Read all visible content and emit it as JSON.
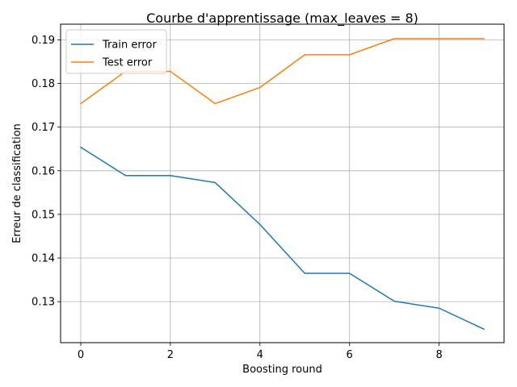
{
  "chart_data": {
    "type": "line",
    "title": "Courbe d'apprentissage (max_leaves = 8)",
    "xlabel": "Boosting round",
    "ylabel": "Erreur de classification",
    "x": [
      0,
      1,
      2,
      3,
      4,
      5,
      6,
      7,
      8,
      9
    ],
    "xlim": [
      -0.45,
      9.45
    ],
    "ylim": [
      0.1206,
      0.1936
    ],
    "xticks": [
      0,
      2,
      4,
      6,
      8
    ],
    "xtick_labels": [
      "0",
      "2",
      "4",
      "6",
      "8"
    ],
    "yticks": [
      0.13,
      0.14,
      0.15,
      0.16,
      0.17,
      0.18,
      0.19
    ],
    "ytick_labels": [
      "0.13",
      "0.14",
      "0.15",
      "0.16",
      "0.17",
      "0.18",
      "0.19"
    ],
    "grid": true,
    "legend_position": "top-left",
    "series": [
      {
        "name": "Train error",
        "color": "#1f77b4",
        "values": [
          0.1654,
          0.1589,
          0.1589,
          0.1573,
          0.1477,
          0.1365,
          0.1365,
          0.1301,
          0.1285,
          0.1237
        ]
      },
      {
        "name": "Test error",
        "color": "#ff7f0e",
        "values": [
          0.1754,
          0.1828,
          0.1828,
          0.1754,
          0.1791,
          0.1866,
          0.1866,
          0.1903,
          0.1903,
          0.1903
        ]
      }
    ]
  }
}
